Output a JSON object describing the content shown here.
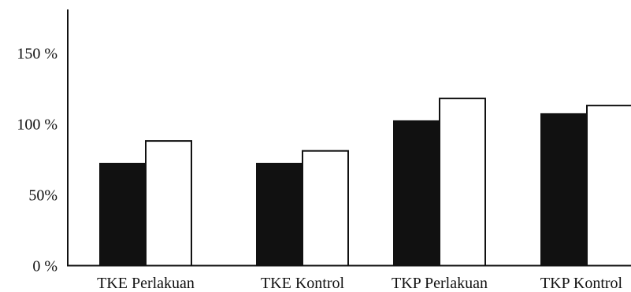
{
  "chart_data": {
    "type": "bar",
    "title": "",
    "xlabel": "",
    "ylabel": "",
    "categories": [
      "TKE Perlakuan",
      "TKE Kontrol",
      "TKP Perlakuan",
      "TKP Kontrol"
    ],
    "series": [
      {
        "fill": "#111111",
        "values": [
          72,
          72,
          102,
          107
        ]
      },
      {
        "fill": "#ffffff",
        "values": [
          88,
          81,
          118,
          113
        ]
      }
    ],
    "ylim": [
      0,
      180
    ],
    "yticks": [
      {
        "value": 0,
        "label": "0 %"
      },
      {
        "value": 50,
        "label": "50%"
      },
      {
        "value": 100,
        "label": "100 %"
      },
      {
        "value": 150,
        "label": "150 %"
      }
    ],
    "grid": false,
    "legend": "none"
  }
}
